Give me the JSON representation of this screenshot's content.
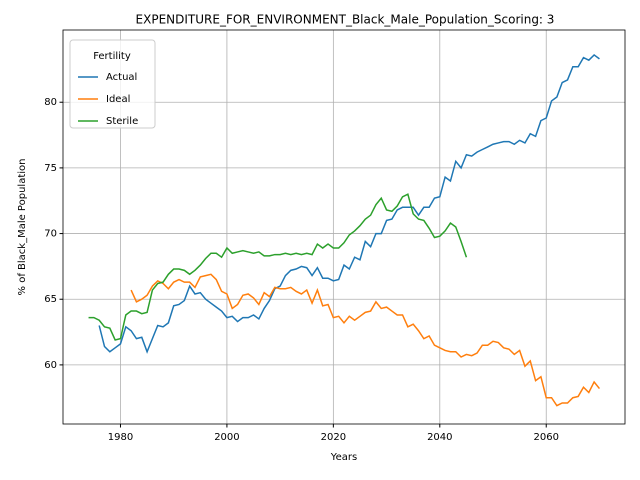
{
  "chart_data": {
    "type": "line",
    "title": "EXPENDITURE_FOR_ENVIRONMENT_Black_Male_Population_Scoring: 3",
    "x_label": "Years",
    "y_label": "% of Black_Male Population",
    "legend_title": "Fertility",
    "legend": "upper left",
    "grid": true,
    "x": [
      1974,
      1975,
      1976,
      1977,
      1978,
      1979,
      1980,
      1981,
      1982,
      1983,
      1984,
      1985,
      1986,
      1987,
      1988,
      1989,
      1990,
      1991,
      1992,
      1993,
      1994,
      1995,
      1996,
      1997,
      1998,
      1999,
      2000,
      2001,
      2002,
      2003,
      2004,
      2005,
      2006,
      2007,
      2008,
      2009,
      2010,
      2011,
      2012,
      2013,
      2014,
      2015,
      2016,
      2017,
      2018,
      2019,
      2020,
      2021,
      2022,
      2023,
      2024,
      2025,
      2026,
      2027,
      2028,
      2029,
      2030,
      2031,
      2032,
      2033,
      2034,
      2035,
      2036,
      2037,
      2038,
      2039,
      2040,
      2041,
      2042,
      2043,
      2044,
      2045,
      2046,
      2047,
      2048,
      2049,
      2050,
      2051,
      2052,
      2053,
      2054,
      2055,
      2056,
      2057,
      2058,
      2059,
      2060,
      2061,
      2062,
      2063,
      2064,
      2065,
      2066,
      2067,
      2068,
      2069,
      2070
    ],
    "series": [
      {
        "name": "Actual",
        "color": "#1f77b4",
        "values": [
          null,
          null,
          63.0,
          61.4,
          61.0,
          61.3,
          61.6,
          62.9,
          62.6,
          62.0,
          62.1,
          61.0,
          62.0,
          63.0,
          62.9,
          63.2,
          64.5,
          64.6,
          64.9,
          66.0,
          65.4,
          65.5,
          65.0,
          64.7,
          64.4,
          64.1,
          63.6,
          63.7,
          63.3,
          63.6,
          63.6,
          63.8,
          63.5,
          64.3,
          64.9,
          65.8,
          66.0,
          66.8,
          67.2,
          67.3,
          67.5,
          67.4,
          66.8,
          67.4,
          66.6,
          66.6,
          66.4,
          66.5,
          67.6,
          67.3,
          68.2,
          68.0,
          69.4,
          69.0,
          70.0,
          70.0,
          71.0,
          71.1,
          71.8,
          72.0,
          72.0,
          72.0,
          71.4,
          72.0,
          72.0,
          72.7,
          72.8,
          74.3,
          74.0,
          75.5,
          75.0,
          76.0,
          75.9,
          76.2,
          76.4,
          76.6,
          76.8,
          76.9,
          77.0,
          77.0,
          76.8,
          77.1,
          76.9,
          77.6,
          77.4,
          78.6,
          78.8,
          80.1,
          80.4,
          81.5,
          81.7,
          82.7,
          82.7,
          83.4,
          83.2,
          83.6,
          83.3
        ]
      },
      {
        "name": "Ideal",
        "color": "#ff7f0e",
        "values": [
          null,
          null,
          null,
          null,
          null,
          null,
          null,
          null,
          65.7,
          64.8,
          65.0,
          65.3,
          66.0,
          66.4,
          66.2,
          65.8,
          66.3,
          66.5,
          66.3,
          66.3,
          65.9,
          66.7,
          66.8,
          66.9,
          66.5,
          65.6,
          65.4,
          64.3,
          64.6,
          65.3,
          65.4,
          65.1,
          64.6,
          65.5,
          65.2,
          65.9,
          65.8,
          65.8,
          65.9,
          65.6,
          65.4,
          65.7,
          64.7,
          65.7,
          64.5,
          64.6,
          63.6,
          63.7,
          63.2,
          63.7,
          63.4,
          63.7,
          64.0,
          64.1,
          64.8,
          64.3,
          64.4,
          64.1,
          63.8,
          63.8,
          62.9,
          63.1,
          62.6,
          62.0,
          62.2,
          61.5,
          61.3,
          61.1,
          61.0,
          61.0,
          60.6,
          60.8,
          60.7,
          60.9,
          61.5,
          61.5,
          61.8,
          61.7,
          61.3,
          61.2,
          60.8,
          61.1,
          59.9,
          60.3,
          58.8,
          59.1,
          57.5,
          57.5,
          56.9,
          57.1,
          57.1,
          57.5,
          57.6,
          58.3,
          57.9,
          58.7,
          58.2
        ]
      },
      {
        "name": "Sterile",
        "color": "#2ca02c",
        "values": [
          63.6,
          63.6,
          63.4,
          62.9,
          62.8,
          61.9,
          62.0,
          63.8,
          64.1,
          64.1,
          63.9,
          64.0,
          65.7,
          66.2,
          66.3,
          66.9,
          67.3,
          67.3,
          67.2,
          66.9,
          67.2,
          67.6,
          68.1,
          68.5,
          68.5,
          68.2,
          68.9,
          68.5,
          68.6,
          68.7,
          68.6,
          68.5,
          68.6,
          68.3,
          68.3,
          68.4,
          68.4,
          68.5,
          68.4,
          68.5,
          68.4,
          68.5,
          68.4,
          69.2,
          68.9,
          69.2,
          68.9,
          68.9,
          69.3,
          69.9,
          70.2,
          70.6,
          71.1,
          71.4,
          72.2,
          72.7,
          71.8,
          71.7,
          72.1,
          72.8,
          73.0,
          71.5,
          71.1,
          71.0,
          70.4,
          69.7,
          69.8,
          70.2,
          70.8,
          70.5,
          69.4,
          68.2,
          null,
          null,
          null,
          null,
          null,
          null,
          null,
          null,
          null,
          null,
          null,
          null,
          null,
          null,
          null,
          null,
          null,
          null,
          null,
          null,
          null,
          null,
          null,
          null,
          null
        ]
      }
    ],
    "xlim": [
      1969.2,
      2074.8
    ],
    "xticks": [
      1980,
      2000,
      2020,
      2040,
      2060
    ],
    "ylim": [
      55.5,
      85.5
    ],
    "yticks": [
      60,
      65,
      70,
      75,
      80
    ]
  }
}
